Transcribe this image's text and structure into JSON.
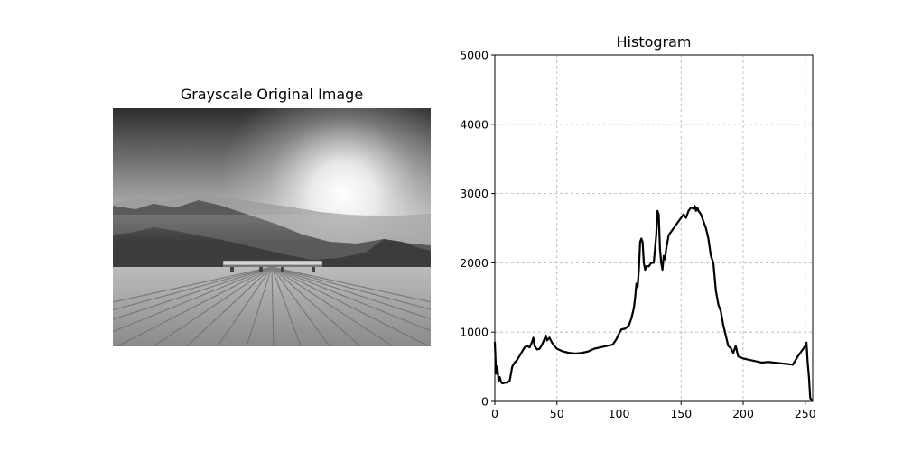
{
  "figure": {
    "left_panel": {
      "title": "Grayscale Original Image",
      "image_description": "grayscale photo of sun rising over layered mountain ridges, seen from a wooden deck with a bench"
    }
  },
  "chart_data": {
    "type": "line",
    "title": "Histogram",
    "xlabel": "",
    "ylabel": "",
    "xlim": [
      0,
      256
    ],
    "ylim": [
      0,
      5000
    ],
    "xticks": [
      0,
      50,
      100,
      150,
      200,
      250
    ],
    "yticks": [
      0,
      1000,
      2000,
      3000,
      4000,
      5000
    ],
    "grid": true,
    "grid_style": "dashed",
    "series": [
      {
        "name": "",
        "color": "#000000",
        "x": [
          0,
          1,
          2,
          3,
          4,
          5,
          6,
          8,
          10,
          12,
          14,
          16,
          18,
          20,
          22,
          24,
          26,
          28,
          30,
          31,
          32,
          34,
          36,
          38,
          40,
          41,
          42,
          44,
          46,
          48,
          50,
          55,
          60,
          65,
          70,
          75,
          80,
          85,
          90,
          95,
          98,
          100,
          102,
          105,
          108,
          110,
          112,
          113,
          114,
          115,
          116,
          117,
          118,
          119,
          120,
          121,
          122,
          124,
          126,
          128,
          130,
          131,
          132,
          133,
          134,
          135,
          136,
          137,
          138,
          139,
          140,
          142,
          144,
          146,
          148,
          150,
          152,
          154,
          156,
          158,
          160,
          161,
          162,
          163,
          164,
          166,
          168,
          170,
          172,
          174,
          176,
          178,
          180,
          182,
          184,
          186,
          188,
          190,
          192,
          194,
          196,
          200,
          205,
          210,
          215,
          220,
          225,
          230,
          235,
          240,
          244,
          246,
          248,
          250,
          251,
          252,
          253,
          254,
          255
        ],
        "values": [
          850,
          400,
          500,
          300,
          350,
          280,
          260,
          270,
          270,
          300,
          500,
          560,
          600,
          660,
          720,
          780,
          800,
          780,
          860,
          920,
          800,
          750,
          760,
          820,
          900,
          950,
          880,
          920,
          850,
          800,
          760,
          720,
          700,
          690,
          700,
          720,
          760,
          780,
          800,
          820,
          900,
          980,
          1040,
          1050,
          1100,
          1200,
          1350,
          1500,
          1700,
          1650,
          1900,
          2300,
          2350,
          2300,
          2000,
          1900,
          1950,
          1950,
          2000,
          2000,
          2400,
          2750,
          2700,
          2200,
          2000,
          1900,
          2100,
          2050,
          2200,
          2300,
          2400,
          2450,
          2500,
          2550,
          2600,
          2650,
          2700,
          2650,
          2750,
          2800,
          2780,
          2820,
          2750,
          2800,
          2750,
          2700,
          2600,
          2500,
          2350,
          2100,
          2000,
          1600,
          1400,
          1300,
          1100,
          950,
          800,
          770,
          700,
          800,
          650,
          620,
          600,
          580,
          560,
          570,
          560,
          550,
          540,
          530,
          650,
          700,
          750,
          800,
          850,
          550,
          350,
          50,
          20
        ]
      }
    ]
  }
}
